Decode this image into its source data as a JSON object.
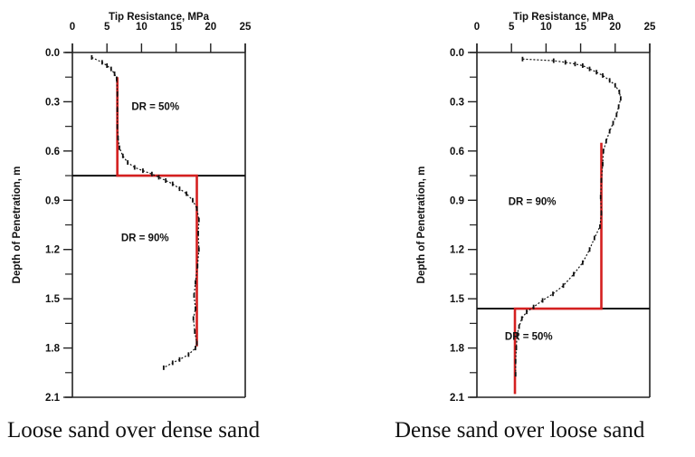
{
  "chart_data": [
    {
      "type": "scatter",
      "title": "",
      "caption": "Loose sand over dense sand",
      "xlabel": "Tip Resistance, MPa",
      "ylabel": "Depth of Penetration, m",
      "xlim": [
        0,
        25
      ],
      "ylim": [
        0.0,
        2.1
      ],
      "y_inverted": true,
      "x_axis_position": "top",
      "xticks": [
        0,
        5,
        10,
        15,
        20,
        25
      ],
      "yticks": [
        0.0,
        0.3,
        0.6,
        0.9,
        1.2,
        1.5,
        1.8,
        2.1
      ],
      "grid": false,
      "layer_boundary_depth": 0.75,
      "annotations": [
        {
          "text": "DR = 50%",
          "x": 12.0,
          "y": 0.35
        },
        {
          "text": "DR = 90%",
          "x": 10.5,
          "y": 1.15
        }
      ],
      "idealized_profile": {
        "color": "#d42020",
        "points": [
          [
            6.5,
            0.15
          ],
          [
            6.5,
            0.75
          ],
          [
            18.0,
            0.75
          ],
          [
            18.0,
            1.79
          ]
        ]
      },
      "measured": {
        "color": "#111111",
        "points": [
          [
            2.8,
            0.03
          ],
          [
            4.3,
            0.06
          ],
          [
            5.0,
            0.08
          ],
          [
            5.6,
            0.1
          ],
          [
            6.1,
            0.13
          ],
          [
            6.4,
            0.16
          ],
          [
            6.5,
            0.25
          ],
          [
            6.5,
            0.35
          ],
          [
            6.5,
            0.45
          ],
          [
            6.6,
            0.52
          ],
          [
            6.8,
            0.58
          ],
          [
            7.3,
            0.63
          ],
          [
            8.0,
            0.67
          ],
          [
            9.0,
            0.7
          ],
          [
            10.2,
            0.72
          ],
          [
            11.5,
            0.74
          ],
          [
            12.5,
            0.76
          ],
          [
            13.5,
            0.78
          ],
          [
            14.5,
            0.8
          ],
          [
            15.5,
            0.83
          ],
          [
            16.5,
            0.86
          ],
          [
            17.4,
            0.9
          ],
          [
            18.0,
            0.95
          ],
          [
            18.3,
            1.02
          ],
          [
            18.2,
            1.1
          ],
          [
            18.3,
            1.2
          ],
          [
            18.1,
            1.3
          ],
          [
            17.8,
            1.4
          ],
          [
            17.6,
            1.48
          ],
          [
            17.8,
            1.56
          ],
          [
            17.5,
            1.62
          ],
          [
            17.7,
            1.7
          ],
          [
            18.0,
            1.77
          ],
          [
            17.8,
            1.8
          ],
          [
            16.8,
            1.84
          ],
          [
            15.5,
            1.87
          ],
          [
            14.5,
            1.89
          ],
          [
            13.2,
            1.92
          ]
        ]
      }
    },
    {
      "type": "scatter",
      "title": "",
      "caption": "Dense sand over loose sand",
      "xlabel": "Tip Resistance, MPa",
      "ylabel": "Depth of Penetration, m",
      "xlim": [
        0,
        25
      ],
      "ylim": [
        0.0,
        2.1
      ],
      "y_inverted": true,
      "x_axis_position": "top",
      "xticks": [
        0,
        5,
        10,
        15,
        20,
        25
      ],
      "yticks": [
        0.0,
        0.3,
        0.6,
        0.9,
        1.2,
        1.5,
        1.8,
        2.1
      ],
      "grid": false,
      "layer_boundary_depth": 1.56,
      "annotations": [
        {
          "text": "DR = 90%",
          "x": 8.0,
          "y": 0.93
        },
        {
          "text": "DR = 50%",
          "x": 7.5,
          "y": 1.75
        }
      ],
      "idealized_profile": {
        "color": "#d42020",
        "points": [
          [
            18.0,
            0.55
          ],
          [
            18.0,
            1.56
          ],
          [
            5.5,
            1.56
          ],
          [
            5.5,
            2.08
          ]
        ]
      },
      "measured": {
        "color": "#111111",
        "points": [
          [
            6.6,
            0.04
          ],
          [
            11.1,
            0.05
          ],
          [
            12.8,
            0.06
          ],
          [
            14.2,
            0.07
          ],
          [
            15.3,
            0.08
          ],
          [
            16.3,
            0.1
          ],
          [
            17.3,
            0.12
          ],
          [
            18.2,
            0.14
          ],
          [
            19.2,
            0.17
          ],
          [
            20.0,
            0.2
          ],
          [
            20.6,
            0.24
          ],
          [
            20.8,
            0.28
          ],
          [
            20.5,
            0.33
          ],
          [
            20.2,
            0.38
          ],
          [
            19.7,
            0.43
          ],
          [
            19.2,
            0.48
          ],
          [
            18.7,
            0.54
          ],
          [
            18.3,
            0.6
          ],
          [
            18.2,
            0.68
          ],
          [
            18.0,
            0.78
          ],
          [
            17.9,
            0.88
          ],
          [
            18.0,
            0.98
          ],
          [
            17.8,
            1.06
          ],
          [
            17.0,
            1.13
          ],
          [
            16.3,
            1.2
          ],
          [
            15.3,
            1.28
          ],
          [
            14.0,
            1.35
          ],
          [
            12.5,
            1.42
          ],
          [
            11.0,
            1.47
          ],
          [
            9.5,
            1.51
          ],
          [
            8.2,
            1.55
          ],
          [
            7.2,
            1.58
          ],
          [
            6.5,
            1.62
          ],
          [
            6.1,
            1.67
          ],
          [
            5.8,
            1.72
          ],
          [
            5.7,
            1.8
          ],
          [
            5.6,
            1.88
          ],
          [
            5.6,
            1.96
          ]
        ]
      }
    }
  ]
}
